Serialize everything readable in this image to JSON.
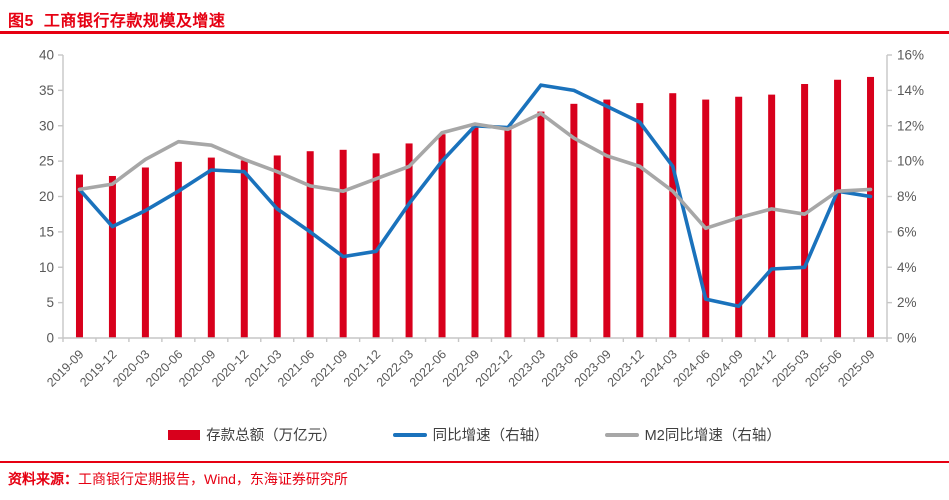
{
  "header": {
    "figure_label": "图5",
    "title": "工商银行存款规模及增速"
  },
  "legend": [
    {
      "label": "存款总额（万亿元）",
      "type": "bar",
      "color": "#d8001c"
    },
    {
      "label": "同比增速（右轴）",
      "type": "line",
      "color": "#1a72bc"
    },
    {
      "label": "M2同比增速（右轴）",
      "type": "line",
      "color": "#a7a7a7"
    }
  ],
  "footer": {
    "source_label": "资料来源：",
    "source_text": "工商银行定期报告，Wind，东海证券研究所"
  },
  "colors": {
    "accent_red": "#e60012",
    "bar_red": "#d8001c",
    "line_blue": "#1a72bc",
    "line_gray": "#a7a7a7",
    "axis_line": "#c6c6c6",
    "axis_text": "#595959"
  },
  "chart_data": {
    "type": "bar",
    "subtype": "bar+line combo, dual axis",
    "title": "工商银行存款规模及增速",
    "xlabel": "",
    "ylabel_left": "存款总额（万亿元）",
    "ylabel_right": "同比增速（%）",
    "grid": false,
    "legend_position": "bottom",
    "categories": [
      "2019-09",
      "2019-12",
      "2020-03",
      "2020-06",
      "2020-09",
      "2020-12",
      "2021-03",
      "2021-06",
      "2021-09",
      "2021-12",
      "2022-03",
      "2022-06",
      "2022-09",
      "2022-12",
      "2023-03",
      "2023-06",
      "2023-09",
      "2023-12",
      "2024-03",
      "2024-06",
      "2024-09",
      "2024-12",
      "2025-03",
      "2025-06",
      "2025-09"
    ],
    "left_axis": {
      "min": 0,
      "max": 40,
      "step": 5,
      "tick_labels": [
        "0",
        "5",
        "10",
        "15",
        "20",
        "25",
        "30",
        "35",
        "40"
      ]
    },
    "right_axis": {
      "min": 0,
      "max": 16,
      "step": 2,
      "suffix": "%",
      "tick_labels": [
        "0%",
        "2%",
        "4%",
        "6%",
        "8%",
        "10%",
        "12%",
        "14%",
        "16%"
      ]
    },
    "series": [
      {
        "name": "存款总额（万亿元）",
        "type": "bar",
        "axis": "left",
        "color": "#d8001c",
        "values": [
          23.1,
          22.9,
          24.1,
          24.9,
          25.5,
          25.1,
          25.8,
          26.4,
          26.6,
          26.1,
          27.5,
          28.8,
          29.9,
          29.6,
          32.0,
          33.1,
          33.7,
          33.2,
          34.6,
          33.7,
          34.1,
          34.4,
          35.9,
          36.5,
          36.9
        ]
      },
      {
        "name": "同比增速（右轴）",
        "type": "line",
        "axis": "right",
        "color": "#1a72bc",
        "values": [
          8.4,
          6.3,
          7.2,
          8.3,
          9.5,
          9.4,
          7.3,
          6.0,
          4.6,
          4.9,
          7.6,
          10.0,
          12.0,
          11.9,
          14.3,
          14.0,
          13.1,
          12.2,
          9.7,
          2.2,
          1.8,
          3.9,
          4.0,
          8.3,
          8.0
        ]
      },
      {
        "name": "M2同比增速（右轴）",
        "type": "line",
        "axis": "right",
        "color": "#a7a7a7",
        "values": [
          8.4,
          8.7,
          10.1,
          11.1,
          10.9,
          10.1,
          9.4,
          8.6,
          8.3,
          9.0,
          9.7,
          11.6,
          12.1,
          11.8,
          12.7,
          11.3,
          10.3,
          9.7,
          8.3,
          6.2,
          6.8,
          7.3,
          7.0,
          8.3,
          8.4
        ]
      }
    ]
  }
}
